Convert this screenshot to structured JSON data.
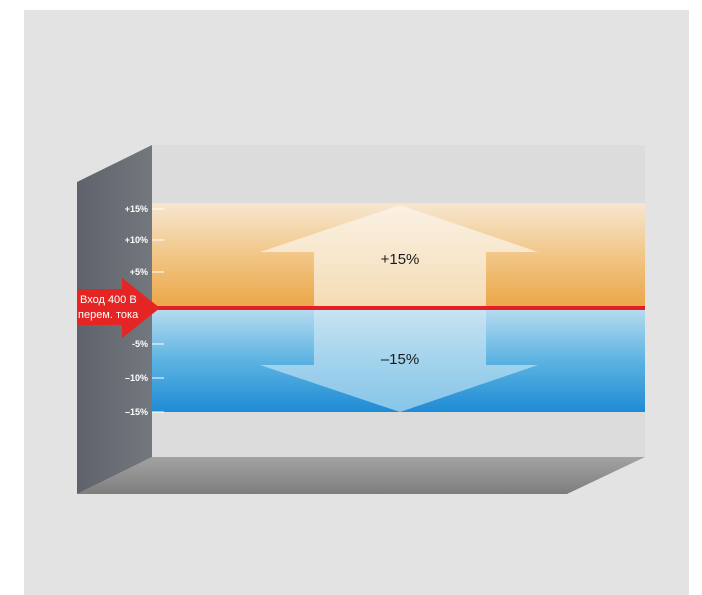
{
  "diagram": {
    "input_label_line1": "Вход 400 В",
    "input_label_line2": "перем. тока",
    "upper_band_label": "+15%",
    "lower_band_label": "–15%",
    "ticks": [
      {
        "label": "+15%",
        "value": 15
      },
      {
        "label": "+10%",
        "value": 10
      },
      {
        "label": "+5%",
        "value": 5
      },
      {
        "label": "-5%",
        "value": -5
      },
      {
        "label": "–10%",
        "value": -10
      },
      {
        "label": "–15%",
        "value": -15
      }
    ],
    "colors": {
      "background": "#e3e3e3",
      "back_panel": "#dddddd",
      "side_wall": "#6c7077",
      "floor": "#8e8e8e",
      "upper_band_top": "#f7e6d0",
      "upper_band_bottom": "#eba545",
      "lower_band_top": "#b6dbef",
      "lower_band_bottom": "#1f8bd4",
      "input_line": "#e31e24",
      "input_arrow": "#e52523",
      "band_arrow": "#f6ecd8"
    }
  }
}
